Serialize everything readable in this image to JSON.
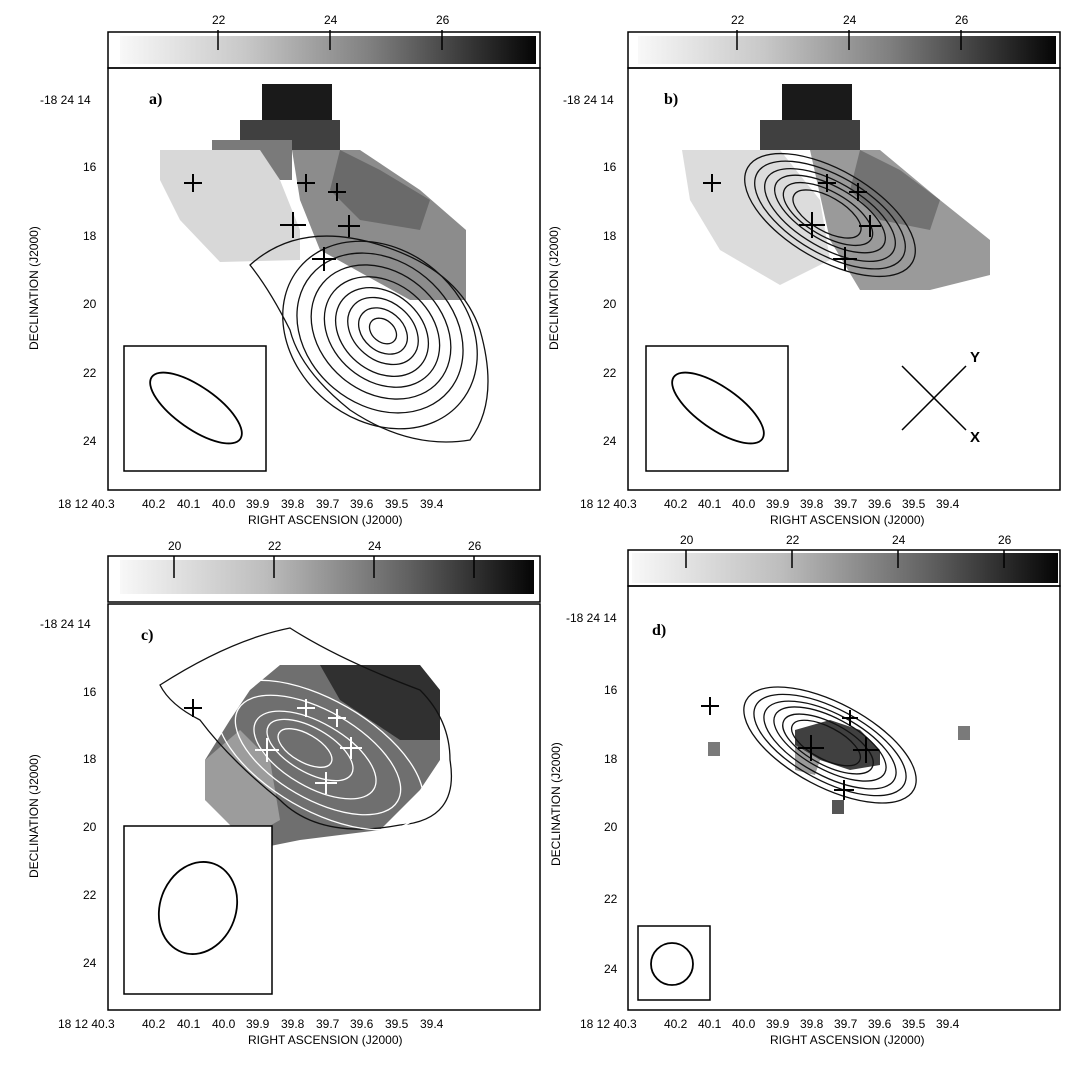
{
  "figure": {
    "colorbar_tick_color": "#000000",
    "panels": [
      {
        "letter": "a)",
        "colorbar_ticks": [
          "22",
          "24",
          "26"
        ],
        "dec_ticks": [
          "-18 24 14",
          "16",
          "18",
          "20",
          "22",
          "24"
        ],
        "ra_ticks": [
          "40.2",
          "40.1",
          "40.0",
          "39.9",
          "39.8",
          "39.7",
          "39.6",
          "39.5",
          "39.4"
        ],
        "ra_prefix": "18 12 40.3",
        "xlabel": "RIGHT ASCENSION (J2000)",
        "ylabel": "DECLINATION (J2000)"
      },
      {
        "letter": "b)",
        "colorbar_ticks": [
          "22",
          "24",
          "26"
        ],
        "dec_ticks": [
          "-18 24 14",
          "16",
          "18",
          "20",
          "22",
          "24"
        ],
        "ra_ticks": [
          "40.2",
          "40.1",
          "40.0",
          "39.9",
          "39.8",
          "39.7",
          "39.6",
          "39.5",
          "39.4"
        ],
        "ra_prefix": "18 12 40.3",
        "xlabel": "RIGHT ASCENSION (J2000)",
        "ylabel": "DECLINATION (J2000)",
        "axis_labels": {
          "y": "Y",
          "x": "X"
        }
      },
      {
        "letter": "c)",
        "colorbar_ticks": [
          "20",
          "22",
          "24",
          "26"
        ],
        "dec_ticks": [
          "-18 24 14",
          "16",
          "18",
          "20",
          "22",
          "24"
        ],
        "ra_ticks": [
          "40.2",
          "40.1",
          "40.0",
          "39.9",
          "39.8",
          "39.7",
          "39.6",
          "39.5",
          "39.4"
        ],
        "ra_prefix": "18 12 40.3",
        "xlabel": "RIGHT ASCENSION (J2000)",
        "ylabel": "DECLINATION (J2000)"
      },
      {
        "letter": "d)",
        "colorbar_ticks": [
          "20",
          "22",
          "24",
          "26"
        ],
        "dec_ticks": [
          "-18 24 14",
          "16",
          "18",
          "20",
          "22",
          "24"
        ],
        "ra_ticks": [
          "40.2",
          "40.1",
          "40.0",
          "39.9",
          "39.8",
          "39.7",
          "39.6",
          "39.5",
          "39.4"
        ],
        "ra_prefix": "18 12 40.3",
        "xlabel": "RIGHT ASCENSION (J2000)",
        "ylabel": "DECLINATION (J2000)"
      }
    ]
  }
}
